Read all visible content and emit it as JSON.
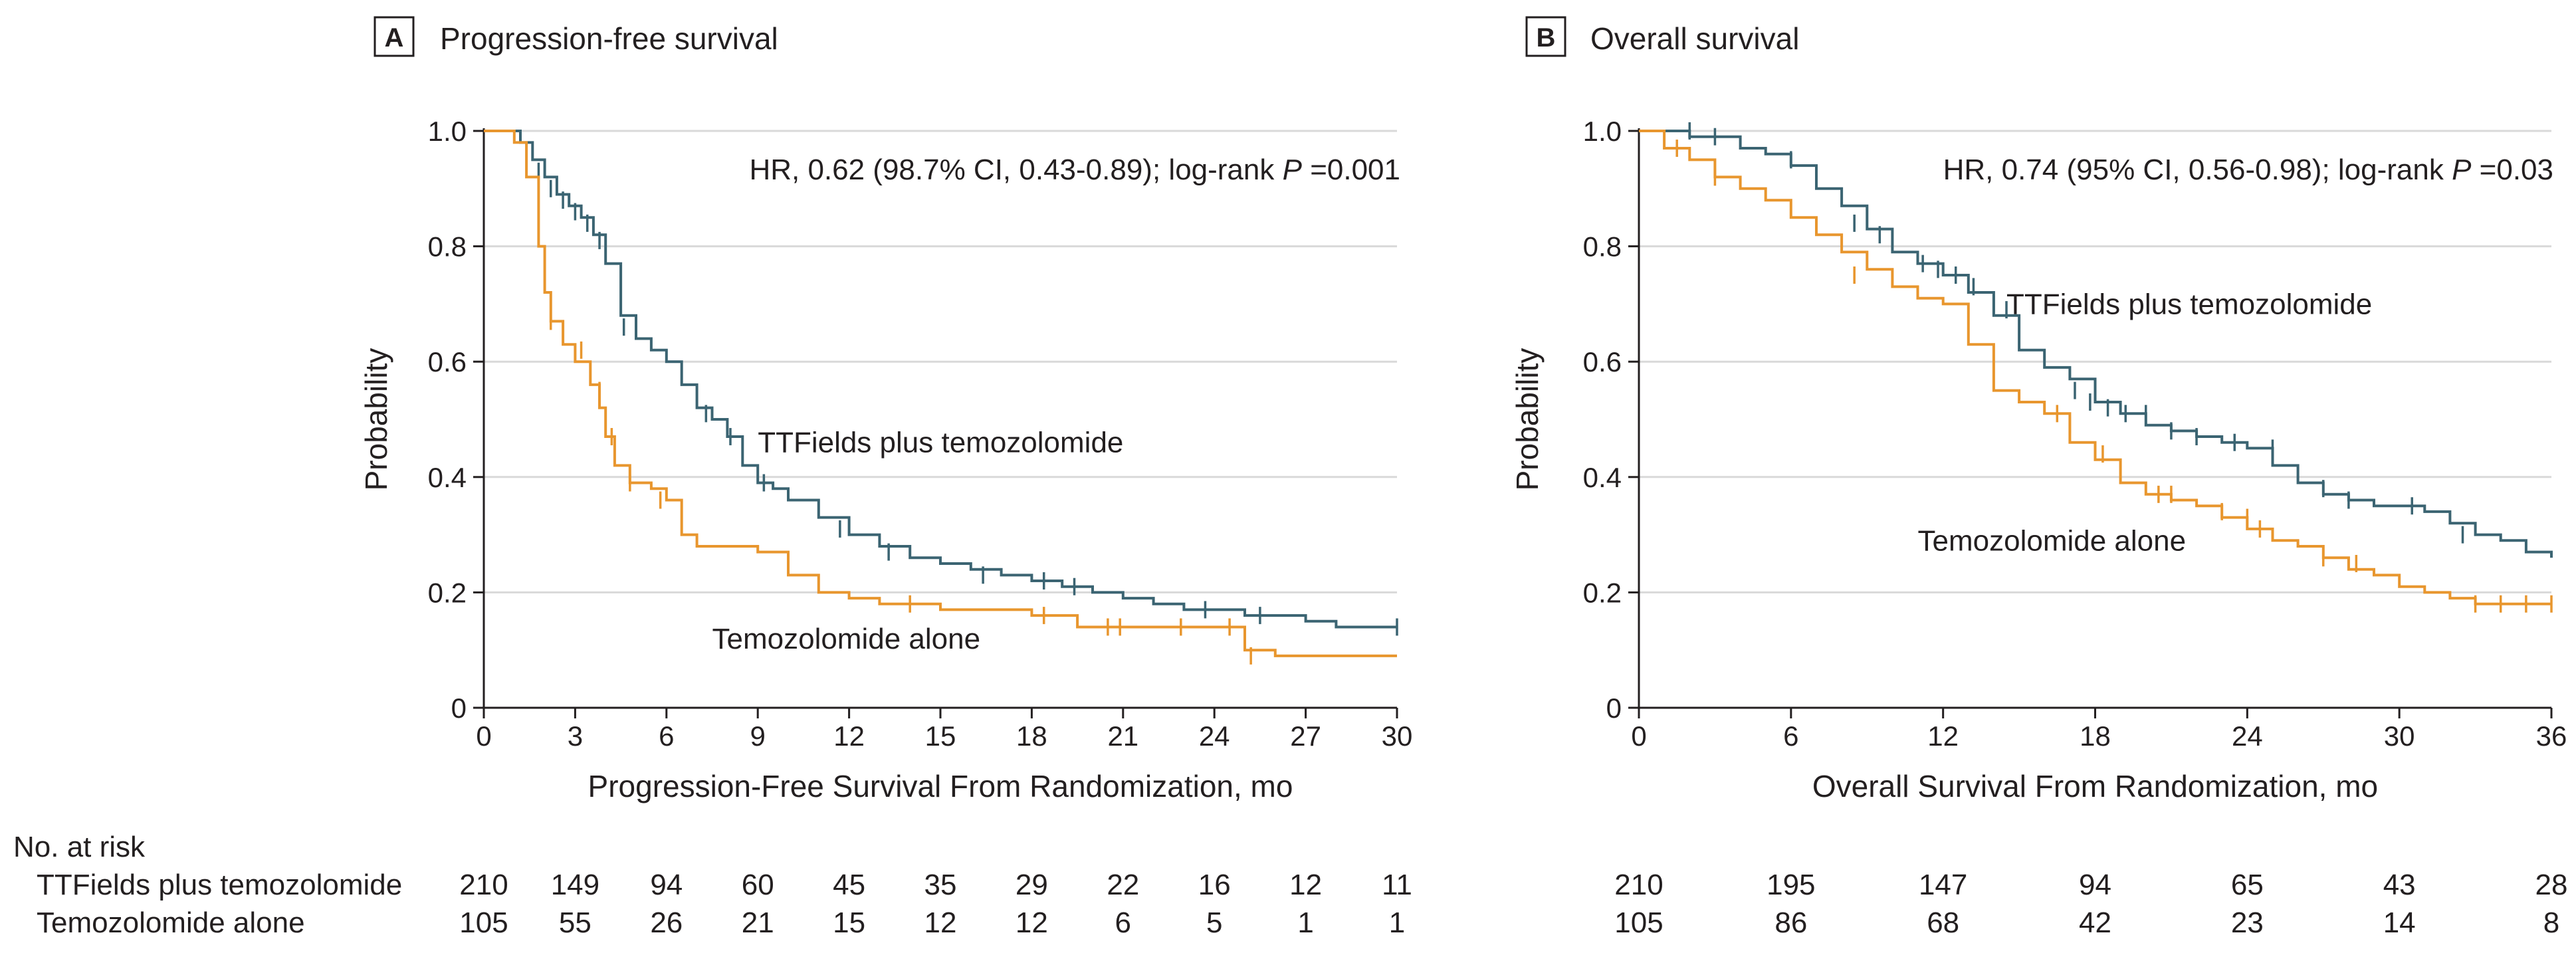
{
  "chart_data": [
    {
      "type": "line",
      "subtype": "kaplan-meier",
      "panel": "A",
      "title": "Progression-free survival",
      "xlabel": "Progression-Free Survival From Randomization, mo",
      "ylabel": "Probability",
      "xlim": [
        0,
        30
      ],
      "ylim": [
        0,
        1.0
      ],
      "xticks": [
        0,
        3,
        6,
        9,
        12,
        15,
        18,
        21,
        24,
        27,
        30
      ],
      "yticks": [
        0,
        0.2,
        0.4,
        0.6,
        0.8,
        1.0
      ],
      "ytick_labels": [
        "0",
        "0.2",
        "0.4",
        "0.6",
        "0.8",
        "1.0"
      ],
      "grid": true,
      "annotation": {
        "text_before": "HR, 0.62 (98.7% CI, 0.43-0.89); log-rank ",
        "p": "P",
        "text_after": " =0.001"
      },
      "series": [
        {
          "name": "TTFields plus temozolomide",
          "color": "#3b6472",
          "label_at": [
            9,
            0.46
          ],
          "x": [
            0,
            1.2,
            1.6,
            2.0,
            2.4,
            2.8,
            3.2,
            3.6,
            4.0,
            4.5,
            5.0,
            5.5,
            6.0,
            6.5,
            7.0,
            7.5,
            8.0,
            8.5,
            9.0,
            9.5,
            10.0,
            11.0,
            12.0,
            13.0,
            14.0,
            15.0,
            16.0,
            17.0,
            18.0,
            19.0,
            20.0,
            21.0,
            22.0,
            23.0,
            24.0,
            25.0,
            26.0,
            27.0,
            28.0,
            30.0
          ],
          "y": [
            1.0,
            0.98,
            0.95,
            0.92,
            0.89,
            0.87,
            0.85,
            0.82,
            0.77,
            0.68,
            0.64,
            0.62,
            0.6,
            0.56,
            0.52,
            0.5,
            0.47,
            0.42,
            0.39,
            0.38,
            0.36,
            0.33,
            0.3,
            0.28,
            0.26,
            0.25,
            0.24,
            0.23,
            0.22,
            0.21,
            0.2,
            0.19,
            0.18,
            0.17,
            0.17,
            0.16,
            0.16,
            0.15,
            0.14,
            0.14
          ],
          "censor_x": [
            1.8,
            2.2,
            2.6,
            3.0,
            3.4,
            3.8,
            4.6,
            7.3,
            8.1,
            9.2,
            11.7,
            13.3,
            16.4,
            18.4,
            19.4,
            23.7,
            25.5,
            30.0
          ],
          "censor_y": [
            0.93,
            0.9,
            0.88,
            0.86,
            0.84,
            0.81,
            0.66,
            0.51,
            0.47,
            0.39,
            0.31,
            0.27,
            0.23,
            0.22,
            0.21,
            0.17,
            0.16,
            0.14
          ]
        },
        {
          "name": "Temozolomide alone",
          "color": "#e8962e",
          "label_at": [
            7.5,
            0.12
          ],
          "x": [
            0,
            1.0,
            1.4,
            1.8,
            2.0,
            2.2,
            2.6,
            3.0,
            3.5,
            3.8,
            4.0,
            4.3,
            4.8,
            5.5,
            6.0,
            6.5,
            7.0,
            8.0,
            9.0,
            10.0,
            11.0,
            12.0,
            13.0,
            14.0,
            15.0,
            16.0,
            17.0,
            18.0,
            19.5,
            21.0,
            23.0,
            24.0,
            25.0,
            26.0,
            28.0,
            30.0
          ],
          "y": [
            1.0,
            0.98,
            0.92,
            0.8,
            0.72,
            0.67,
            0.63,
            0.6,
            0.56,
            0.52,
            0.47,
            0.42,
            0.39,
            0.38,
            0.36,
            0.3,
            0.28,
            0.28,
            0.27,
            0.23,
            0.2,
            0.19,
            0.18,
            0.18,
            0.17,
            0.17,
            0.17,
            0.16,
            0.14,
            0.14,
            0.14,
            0.14,
            0.1,
            0.09,
            0.09,
            0.09
          ],
          "censor_x": [
            2.2,
            3.2,
            3.8,
            4.2,
            4.8,
            5.8,
            14.0,
            18.4,
            20.5,
            20.9,
            22.9,
            24.5,
            25.2
          ],
          "censor_y": [
            0.67,
            0.62,
            0.55,
            0.47,
            0.39,
            0.36,
            0.18,
            0.16,
            0.14,
            0.14,
            0.14,
            0.14,
            0.09
          ]
        }
      ]
    },
    {
      "type": "line",
      "subtype": "kaplan-meier",
      "panel": "B",
      "title": "Overall survival",
      "xlabel": "Overall Survival From Randomization, mo",
      "ylabel": "Probability",
      "xlim": [
        0,
        36
      ],
      "ylim": [
        0,
        1.0
      ],
      "xticks": [
        0,
        6,
        12,
        18,
        24,
        30,
        36
      ],
      "yticks": [
        0,
        0.2,
        0.4,
        0.6,
        0.8,
        1.0
      ],
      "ytick_labels": [
        "0",
        "0.2",
        "0.4",
        "0.6",
        "0.8",
        "1.0"
      ],
      "grid": true,
      "annotation": {
        "text_before": "HR, 0.74 (95% CI, 0.56-0.98); log-rank ",
        "p": "P",
        "text_after": " =0.03"
      },
      "series": [
        {
          "name": "TTFields plus temozolomide",
          "color": "#3b6472",
          "label_at": [
            14.5,
            0.7
          ],
          "x": [
            0,
            1.0,
            2.0,
            3.0,
            4.0,
            5.0,
            6.0,
            7.0,
            8.0,
            9.0,
            10.0,
            11.0,
            12.0,
            13.0,
            14.0,
            15.0,
            16.0,
            17.0,
            18.0,
            19.0,
            20.0,
            21.0,
            22.0,
            23.0,
            24.0,
            25.0,
            26.0,
            27.0,
            28.0,
            29.0,
            30.0,
            31.0,
            32.0,
            33.0,
            34.0,
            35.0,
            36.0
          ],
          "y": [
            1.0,
            1.0,
            0.99,
            0.99,
            0.97,
            0.96,
            0.94,
            0.9,
            0.87,
            0.83,
            0.79,
            0.77,
            0.75,
            0.72,
            0.68,
            0.62,
            0.59,
            0.57,
            0.53,
            0.51,
            0.49,
            0.48,
            0.47,
            0.46,
            0.45,
            0.42,
            0.39,
            0.37,
            0.36,
            0.35,
            0.35,
            0.34,
            0.32,
            0.3,
            0.29,
            0.27,
            0.26
          ],
          "censor_x": [
            2.0,
            3.0,
            6.0,
            8.5,
            9.5,
            11.2,
            11.8,
            12.5,
            13.2,
            14.0,
            14.5,
            17.2,
            17.8,
            18.5,
            19.2,
            20.0,
            21.0,
            22.0,
            23.5,
            25.0,
            27.0,
            28.0,
            30.5,
            32.5
          ],
          "censor_y": [
            1.0,
            0.99,
            0.95,
            0.84,
            0.82,
            0.77,
            0.76,
            0.75,
            0.73,
            0.7,
            0.69,
            0.55,
            0.53,
            0.52,
            0.51,
            0.51,
            0.48,
            0.47,
            0.46,
            0.45,
            0.38,
            0.36,
            0.35,
            0.3
          ]
        },
        {
          "name": "Temozolomide alone",
          "color": "#e8962e",
          "label_at": [
            11,
            0.29
          ],
          "x": [
            0,
            1.0,
            2.0,
            3.0,
            4.0,
            5.0,
            6.0,
            7.0,
            8.0,
            9.0,
            10.0,
            11.0,
            12.0,
            13.0,
            14.0,
            15.0,
            16.0,
            17.0,
            18.0,
            19.0,
            20.0,
            21.0,
            22.0,
            23.0,
            24.0,
            25.0,
            26.0,
            27.0,
            28.0,
            29.0,
            30.0,
            31.0,
            32.0,
            33.0,
            34.0,
            36.0
          ],
          "y": [
            1.0,
            0.97,
            0.95,
            0.92,
            0.9,
            0.88,
            0.85,
            0.82,
            0.79,
            0.76,
            0.73,
            0.71,
            0.7,
            0.63,
            0.55,
            0.53,
            0.51,
            0.46,
            0.43,
            0.39,
            0.37,
            0.36,
            0.35,
            0.33,
            0.31,
            0.29,
            0.28,
            0.26,
            0.24,
            0.23,
            0.21,
            0.2,
            0.19,
            0.18,
            0.18,
            0.18
          ],
          "censor_x": [
            1.5,
            3.0,
            8.5,
            16.5,
            17.0,
            18.3,
            20.5,
            21.0,
            23.0,
            24.0,
            24.5,
            27.0,
            28.3,
            33.0,
            34.0,
            35.0,
            36.0
          ],
          "censor_y": [
            0.97,
            0.92,
            0.75,
            0.51,
            0.49,
            0.44,
            0.37,
            0.37,
            0.34,
            0.33,
            0.31,
            0.26,
            0.25,
            0.18,
            0.18,
            0.18,
            0.18
          ]
        }
      ]
    }
  ],
  "risk_table": {
    "header": "No. at risk",
    "rows": [
      {
        "label": "TTFields plus temozolomide",
        "panel_a": [
          "210",
          "149",
          "94",
          "60",
          "45",
          "35",
          "29",
          "22",
          "16",
          "12",
          "11"
        ],
        "panel_b": [
          "210",
          "195",
          "147",
          "94",
          "65",
          "43",
          "28"
        ]
      },
      {
        "label": "Temozolomide alone",
        "panel_a": [
          "105",
          "55",
          "26",
          "21",
          "15",
          "12",
          "12",
          "6",
          "5",
          "1",
          "1"
        ],
        "panel_b": [
          "105",
          "86",
          "68",
          "42",
          "23",
          "14",
          "8"
        ]
      }
    ]
  }
}
